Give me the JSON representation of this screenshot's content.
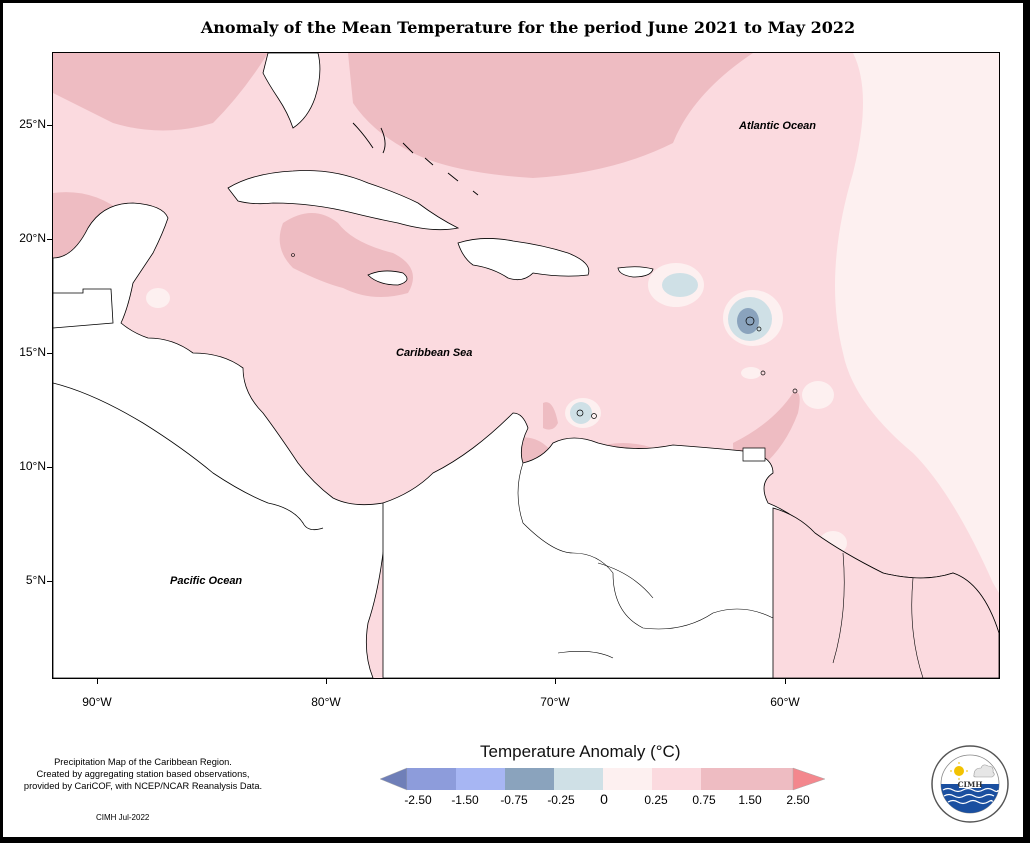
{
  "title": "Anomaly of the Mean Temperature for the period June 2021 to May 2022",
  "ocean_labels": {
    "atlantic": "Atlantic Ocean",
    "caribbean": "Caribbean Sea",
    "pacific": "Pacific Ocean"
  },
  "axes": {
    "lat_ticks": [
      "25°N",
      "20°N",
      "15°N",
      "10°N",
      "5°N"
    ],
    "lon_ticks": [
      "90°W",
      "80°W",
      "70°W",
      "60°W"
    ]
  },
  "legend": {
    "title": "Temperature Anomaly (°C)",
    "labels": [
      "-2.50",
      "-1.50",
      "-0.75",
      "-0.25",
      "0",
      "0.25",
      "0.75",
      "1.50",
      "2.50"
    ],
    "colors": [
      "#6f7fb8",
      "#8d9cdb",
      "#a7b6f3",
      "#8aa3bd",
      "#cfe0e6",
      "#fdf0f0",
      "#fbdadf",
      "#eebcc2",
      "#f3878d"
    ]
  },
  "credits": {
    "lines": [
      "Precipitation Map of the Caribbean Region.",
      "Created by aggregating station based observations,",
      "provided by CariCOF, with NCEP/NCAR Reanalysis Data."
    ],
    "date": "CIMH Jul-2022"
  },
  "logo": {
    "text": "CIMH",
    "ring_text": "Caribbean Institute for Meteorology and Hydrology"
  }
}
